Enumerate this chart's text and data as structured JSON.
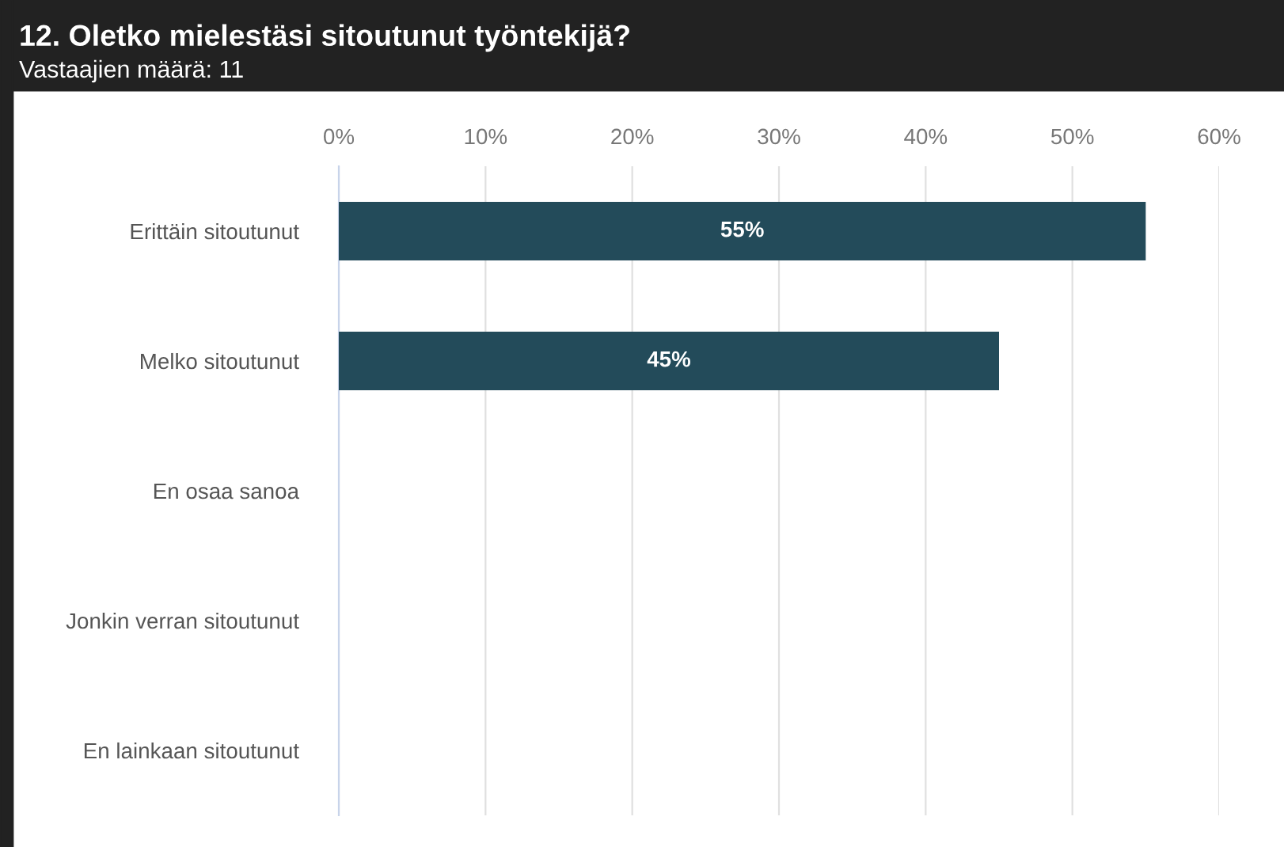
{
  "chart_data": {
    "type": "bar",
    "orientation": "horizontal",
    "title": "12. Oletko mielestäsi sitoutunut työntekijä?",
    "subtitle": "Vastaajien määrä: 11",
    "categories": [
      "Erittäin sitoutunut",
      "Melko sitoutunut",
      "En osaa sanoa",
      "Jonkin verran sitoutunut",
      "En lainkaan sitoutunut"
    ],
    "values": [
      55,
      45,
      0,
      0,
      0
    ],
    "value_labels": [
      "55%",
      "45%",
      null,
      null,
      null
    ],
    "color": "#234b5a",
    "xlim": [
      0,
      60
    ],
    "xticks": [
      {
        "value": 0,
        "label": "0%"
      },
      {
        "value": 10,
        "label": "10%"
      },
      {
        "value": 20,
        "label": "20%"
      },
      {
        "value": 30,
        "label": "30%"
      },
      {
        "value": 40,
        "label": "40%"
      },
      {
        "value": 50,
        "label": "50%"
      },
      {
        "value": 60,
        "label": "60%"
      }
    ],
    "grid": "x"
  }
}
